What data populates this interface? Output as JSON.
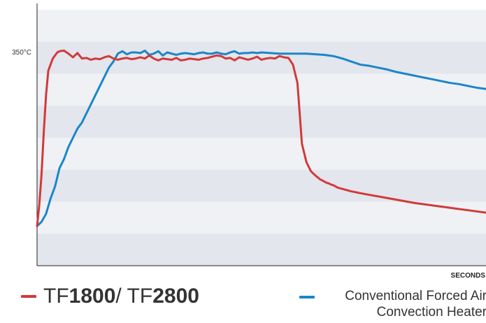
{
  "chart_data": {
    "type": "line",
    "title": "",
    "xlabel": "SECONDS",
    "ylabel": "",
    "y_tick_labels": [
      {
        "value": 350,
        "label": "350°C"
      }
    ],
    "xlim": [
      0,
      100
    ],
    "ylim": [
      0,
      420
    ],
    "grid": "horizontal bands",
    "legend_position": "bottom",
    "series": [
      {
        "name": "TF1800 / TF2800",
        "color": "#d13a3a",
        "x": [
          0,
          0.5,
          1,
          1.5,
          2,
          2.5,
          3,
          3.5,
          4,
          4.5,
          5,
          6,
          7,
          8,
          9,
          10,
          11,
          12,
          13,
          14,
          15,
          16,
          17,
          18,
          19,
          20,
          21,
          22,
          23,
          24,
          25,
          26,
          27,
          28,
          29,
          30,
          31,
          32,
          33,
          34,
          35,
          36,
          37,
          38,
          39,
          40,
          41,
          42,
          43,
          44,
          45,
          46,
          47,
          48,
          49,
          50,
          51,
          52,
          53,
          54,
          55,
          56,
          57,
          58,
          59,
          60,
          61,
          62,
          63,
          64,
          64.5,
          65,
          65.5,
          66,
          66.5,
          67,
          68,
          69,
          70,
          72,
          75,
          78,
          81,
          84,
          87,
          90,
          93,
          96,
          98,
          100
        ],
        "y": [
          65,
          100,
          150,
          220,
          280,
          320,
          330,
          340,
          345,
          350,
          352,
          353,
          348,
          342,
          349,
          340,
          341,
          338,
          340,
          339,
          342,
          344,
          340,
          338,
          340,
          341,
          339,
          340,
          342,
          340,
          345,
          340,
          337,
          340,
          339,
          338,
          341,
          337,
          338,
          340,
          339,
          338,
          340,
          341,
          343,
          345,
          344,
          340,
          341,
          337,
          342,
          340,
          338,
          340,
          343,
          338,
          340,
          341,
          340,
          344,
          342,
          341,
          330,
          300,
          200,
          170,
          155,
          148,
          142,
          138,
          136,
          135,
          133,
          132,
          130,
          128,
          126,
          124,
          122,
          119,
          115,
          111,
          107,
          103,
          100,
          97,
          94,
          91,
          89,
          87
        ],
        "y_display": [
          65,
          100,
          150,
          220,
          280,
          320,
          330,
          340,
          345,
          350,
          352,
          353,
          348,
          342,
          349,
          340,
          341,
          338,
          340,
          339,
          342,
          344,
          340,
          338,
          340,
          341,
          339,
          340,
          342,
          340,
          345,
          340,
          337,
          340,
          339,
          338,
          341,
          337,
          338,
          340,
          339,
          338,
          340,
          341,
          343,
          345,
          344,
          340,
          341,
          337,
          342,
          340,
          338,
          340,
          343,
          338,
          340,
          341,
          340,
          344,
          342,
          341,
          330,
          300,
          200,
          170,
          155,
          148,
          142,
          138,
          136,
          135,
          133,
          132,
          130,
          128,
          126,
          124,
          122,
          119,
          115,
          111,
          107,
          103,
          100,
          97,
          94,
          91,
          89,
          87
        ]
      },
      {
        "name": "Conventional Forced Air Convection Heater",
        "color": "#1b86c8",
        "x": [
          0,
          1,
          2,
          3,
          4,
          5,
          6,
          7,
          8,
          9,
          10,
          11,
          12,
          13,
          14,
          15,
          16,
          17,
          18,
          19,
          20,
          21,
          22,
          23,
          24,
          25,
          26,
          27,
          28,
          29,
          30,
          31,
          32,
          33,
          34,
          35,
          36,
          37,
          38,
          39,
          40,
          41,
          42,
          43,
          44,
          45,
          46,
          47,
          48,
          49,
          50,
          52,
          54,
          56,
          58,
          60,
          62,
          64,
          66,
          68,
          70,
          72,
          74,
          76,
          78,
          80,
          82,
          84,
          86,
          88,
          90,
          92,
          94,
          96,
          98,
          100
        ],
        "y": [
          65,
          72,
          85,
          110,
          130,
          160,
          175,
          195,
          210,
          225,
          235,
          250,
          265,
          280,
          295,
          310,
          325,
          335,
          348,
          352,
          347,
          350,
          350,
          349,
          353,
          346,
          348,
          352,
          345,
          350,
          348,
          346,
          348,
          349,
          348,
          347,
          349,
          350,
          348,
          348,
          350,
          348,
          347,
          350,
          352,
          348,
          349,
          349,
          350,
          349,
          350,
          349,
          348,
          348,
          348,
          348,
          347,
          346,
          344,
          340,
          335,
          330,
          328,
          325,
          322,
          318,
          315,
          312,
          309,
          306,
          303,
          300,
          298,
          295,
          292,
          290
        ]
      }
    ]
  },
  "legend": {
    "red": {
      "prefix1": "TF",
      "bold1": "1800",
      "sep": "/ ",
      "prefix2": "TF",
      "bold2": "2800"
    },
    "blue": {
      "line1": "Conventional Forced Air",
      "line2": "Convection Heater"
    }
  }
}
